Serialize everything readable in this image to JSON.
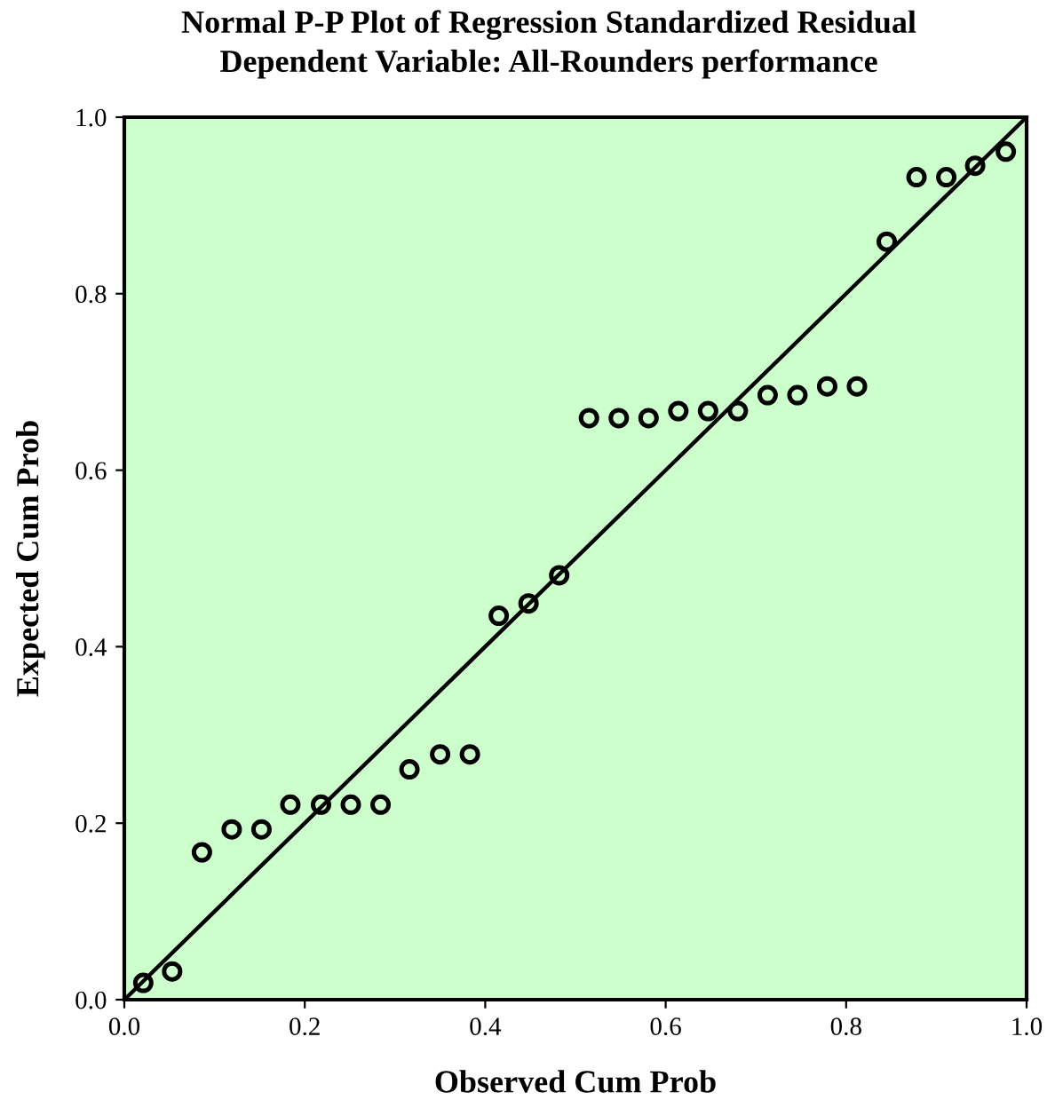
{
  "chart_data": {
    "type": "scatter",
    "title": "Normal P-P Plot of Regression Standardized Residual",
    "subtitle": "Dependent Variable: All-Rounders performance",
    "xlabel": "Observed Cum Prob",
    "ylabel": "Expected Cum Prob",
    "xlim": [
      0,
      1
    ],
    "ylim": [
      0,
      1
    ],
    "xticks": [
      {
        "value": 0,
        "label": "0.0"
      },
      {
        "value": 0.2,
        "label": "0.2"
      },
      {
        "value": 0.4,
        "label": "0.4"
      },
      {
        "value": 0.6,
        "label": "0.6"
      },
      {
        "value": 0.8,
        "label": "0.8"
      },
      {
        "value": 1,
        "label": "1.0"
      }
    ],
    "yticks": [
      {
        "value": 0,
        "label": "0.0"
      },
      {
        "value": 0.2,
        "label": "0.2"
      },
      {
        "value": 0.4,
        "label": "0.4"
      },
      {
        "value": 0.6,
        "label": "0.6"
      },
      {
        "value": 0.8,
        "label": "0.8"
      },
      {
        "value": 1,
        "label": "1.0"
      }
    ],
    "grid": false,
    "legend": false,
    "series": [
      {
        "marker": "circle",
        "color": "#000000",
        "x": [
          0.021,
          0.053,
          0.086,
          0.119,
          0.152,
          0.184,
          0.218,
          0.251,
          0.284,
          0.316,
          0.35,
          0.383,
          0.415,
          0.448,
          0.482,
          0.515,
          0.548,
          0.581,
          0.614,
          0.647,
          0.68,
          0.713,
          0.746,
          0.779,
          0.812,
          0.845,
          0.878,
          0.911,
          0.943,
          0.977
        ],
        "values": [
          0.019,
          0.032,
          0.167,
          0.193,
          0.193,
          0.221,
          0.221,
          0.221,
          0.221,
          0.261,
          0.278,
          0.278,
          0.435,
          0.449,
          0.481,
          0.659,
          0.659,
          0.659,
          0.667,
          0.667,
          0.667,
          0.685,
          0.685,
          0.695,
          0.695,
          0.859,
          0.932,
          0.932,
          0.945,
          0.961
        ]
      },
      {
        "type": "line",
        "color": "#000000",
        "x": [
          0,
          1
        ],
        "values": [
          0,
          1
        ]
      }
    ]
  }
}
